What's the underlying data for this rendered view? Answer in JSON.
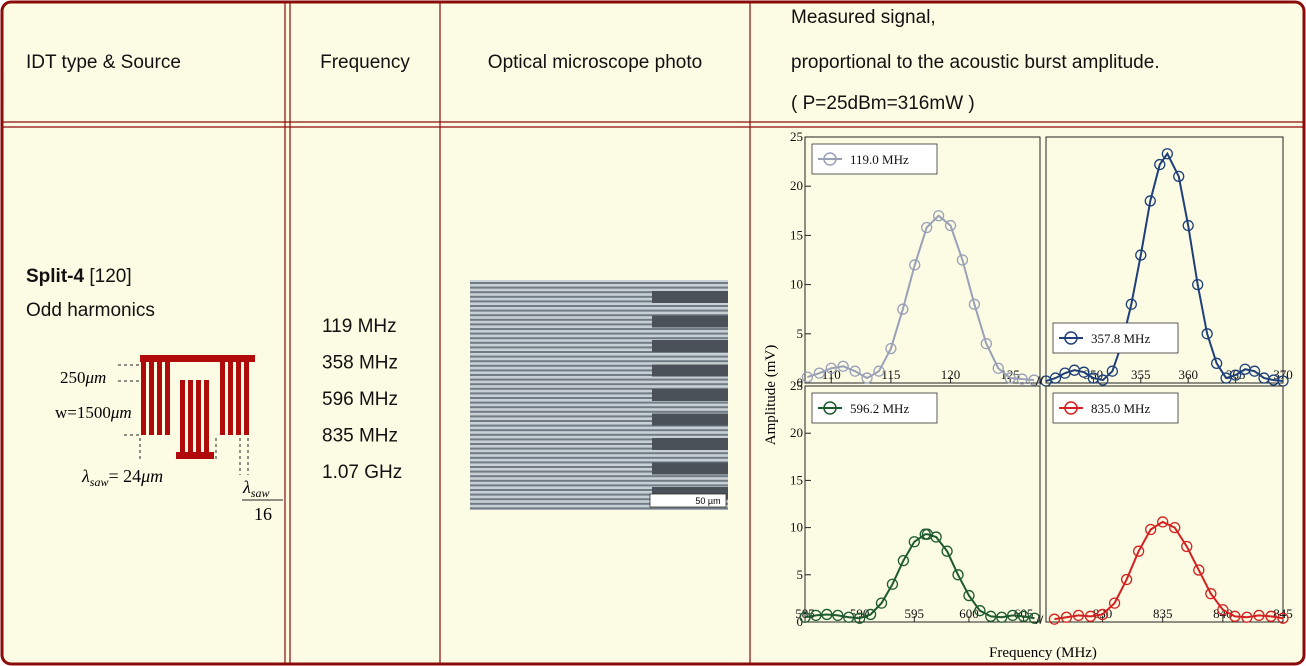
{
  "header": {
    "cells": [
      "IDT type & Source",
      "Frequency",
      "Optical microscope photo"
    ],
    "signal_lines": [
      "Measured signal,",
      "proportional to the acoustic burst amplitude.",
      "( P=25dBm=316mW )"
    ]
  },
  "row": {
    "name": "Split-4",
    "ref": "[120]",
    "note": "Odd harmonics",
    "diagram": {
      "gap_label": "250",
      "gap_unit": "μm",
      "width_label": "w=1500",
      "width_unit": "μm",
      "lambda": "λ",
      "lambda_sub": "saw",
      "lambda_value": "= 24",
      "lambda_unit": "μm",
      "finger_num": "λ",
      "finger_num_sub": "saw",
      "finger_den": "16"
    },
    "frequencies": [
      "119 MHz",
      "358 MHz",
      "596 MHz",
      "835 MHz",
      "1.07 GHz"
    ],
    "photo": {
      "scale_label": "50 µm"
    }
  },
  "figure": {
    "ylabel": "Amplitude (mV)",
    "xlabel": "Frequency (MHz)"
  },
  "chart_data": [
    {
      "type": "line",
      "xlim": [
        107.8,
        127.5
      ],
      "ylim": [
        0,
        25
      ],
      "xticks": [
        110,
        115,
        120,
        125
      ],
      "yticks": [
        0,
        5,
        10,
        15,
        20,
        25
      ],
      "legend": "upper left",
      "series": [
        {
          "name": "119.0 MHz",
          "color": "#9aa0b8",
          "x": [
            108,
            109,
            110,
            111,
            112,
            113,
            114,
            115,
            116,
            117,
            118,
            119,
            120,
            121,
            122,
            123,
            124,
            125,
            126,
            127
          ],
          "values": [
            0.6,
            1.0,
            1.5,
            1.7,
            1.2,
            0.5,
            1.2,
            3.5,
            7.5,
            12,
            15.8,
            17,
            16,
            12.5,
            8,
            4,
            1.5,
            0.5,
            0.4,
            0.3
          ]
        }
      ]
    },
    {
      "type": "line",
      "xlim": [
        345,
        370
      ],
      "ylim": [
        0,
        25
      ],
      "xticks": [
        350,
        355,
        360,
        365,
        370
      ],
      "legend": "lower left",
      "series": [
        {
          "name": "357.8 MHz",
          "color": "#1f3f7a",
          "x": [
            345,
            346,
            347,
            348,
            349,
            350,
            351,
            352,
            353,
            354,
            355,
            356,
            357,
            357.8,
            359,
            360,
            361,
            362,
            363,
            364,
            365,
            366,
            367,
            368,
            369,
            370
          ],
          "values": [
            0.2,
            0.5,
            1.0,
            1.3,
            1.1,
            0.5,
            0.3,
            1.2,
            4,
            8,
            13,
            18.5,
            22.2,
            23.3,
            21,
            16,
            10,
            5,
            2,
            0.5,
            0.8,
            1.4,
            1.2,
            0.5,
            0.3,
            0.2
          ]
        }
      ]
    },
    {
      "type": "line",
      "xlim": [
        585,
        606.5
      ],
      "ylim": [
        0,
        25
      ],
      "xticks": [
        585,
        590,
        595,
        600,
        605
      ],
      "yticks": [
        0,
        5,
        10,
        15,
        20,
        25
      ],
      "legend": "upper left",
      "series": [
        {
          "name": "596.2 MHz",
          "color": "#1e5a30",
          "x": [
            585,
            586,
            587,
            588,
            589,
            590,
            591,
            592,
            593,
            594,
            595,
            596,
            596.2,
            597,
            598,
            599,
            600,
            601,
            602,
            603,
            604,
            605,
            606
          ],
          "values": [
            0.5,
            0.7,
            0.8,
            0.7,
            0.5,
            0.4,
            0.8,
            2,
            4,
            6.5,
            8.5,
            9.3,
            9.3,
            9,
            7.5,
            5,
            2.8,
            1.2,
            0.6,
            0.5,
            0.7,
            0.6,
            0.4
          ]
        }
      ]
    },
    {
      "type": "line",
      "xlim": [
        825.3,
        845
      ],
      "ylim": [
        0,
        25
      ],
      "xticks": [
        830,
        835,
        840,
        845
      ],
      "legend": "upper left",
      "series": [
        {
          "name": "835.0 MHz",
          "color": "#d42020",
          "x": [
            826,
            827,
            828,
            829,
            830,
            831,
            832,
            833,
            834,
            835,
            836,
            837,
            838,
            839,
            840,
            841,
            842,
            843,
            844,
            845
          ],
          "values": [
            0.3,
            0.5,
            0.7,
            0.6,
            0.8,
            2,
            4.5,
            7.5,
            9.8,
            10.6,
            10,
            8,
            5.5,
            3,
            1.3,
            0.6,
            0.5,
            0.7,
            0.6,
            0.4
          ]
        }
      ]
    }
  ]
}
